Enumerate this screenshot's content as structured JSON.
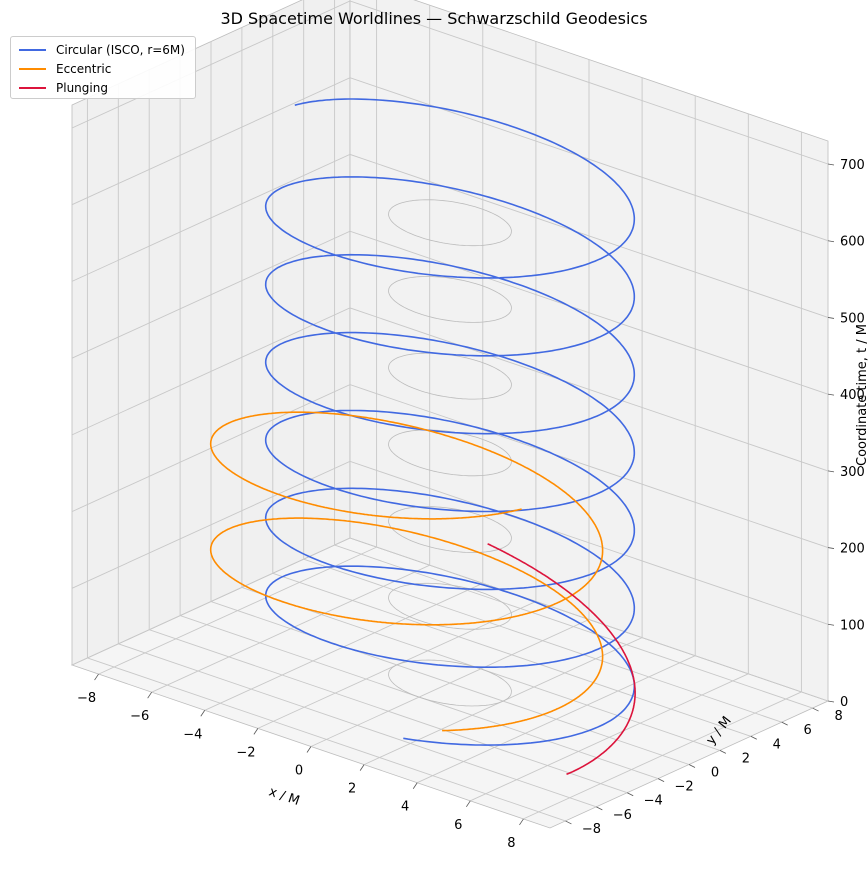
{
  "chart_data": {
    "type": "line3d",
    "title": "3D Spacetime Worldlines — Schwarzschild Geodesics",
    "xlabel": "x / M",
    "ylabel": "y / M",
    "zlabel": "Coordinate time, t / M",
    "xlim": [
      -9,
      9
    ],
    "ylim": [
      -9,
      9
    ],
    "zlim": [
      0,
      730
    ],
    "xticks": [
      "−8",
      "−6",
      "−4",
      "−2",
      "0",
      "2",
      "4",
      "6",
      "8"
    ],
    "yticks": [
      "−8",
      "−6",
      "−4",
      "−2",
      "0",
      "2",
      "4",
      "6",
      "8"
    ],
    "zticks": [
      "0",
      "100",
      "200",
      "300",
      "400",
      "500",
      "600",
      "700"
    ],
    "legend_position": "top-left",
    "grid": true,
    "series": [
      {
        "name": "Circular (ISCO, r=6M)",
        "color": "#4169e1",
        "kind": "circular",
        "radius": 6,
        "t_start": 0,
        "t_end": 680,
        "orbits": 6.7
      },
      {
        "name": "Eccentric",
        "color": "#ff8c00",
        "kind": "eccentric",
        "pericenter": 4.3,
        "apocenter": 9.0,
        "t_start": 0,
        "t_end": 290,
        "orbits": 2.1
      },
      {
        "name": "Plunging",
        "color": "#dc143c",
        "kind": "plunge",
        "r_start": 8,
        "r_end": 1.8,
        "t_start": 0,
        "t_end": 170
      }
    ],
    "reference_circle": {
      "radius": 2,
      "color": "#bbbbbb",
      "t_values": [
        0,
        100,
        200,
        300,
        400,
        500,
        600
      ]
    }
  }
}
